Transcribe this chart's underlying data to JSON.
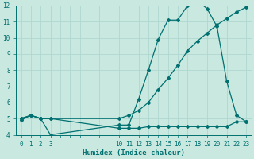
{
  "xlabel": "Humidex (Indice chaleur)",
  "bg_color": "#c8e8e0",
  "grid_color": "#b0d8d0",
  "line_color": "#007070",
  "line1_x": [
    0,
    1,
    2,
    3,
    10,
    11,
    12,
    13,
    14,
    15,
    16,
    17,
    18,
    19,
    20,
    21,
    22,
    23
  ],
  "line1_y": [
    5.0,
    5.2,
    5.0,
    4.0,
    4.6,
    4.6,
    6.2,
    8.0,
    9.9,
    11.1,
    11.1,
    12.0,
    12.3,
    11.8,
    10.7,
    7.3,
    5.2,
    4.8
  ],
  "line2_x": [
    0,
    1,
    2,
    3,
    10,
    11,
    12,
    13,
    14,
    15,
    16,
    17,
    18,
    19,
    20,
    21,
    22,
    23
  ],
  "line2_y": [
    4.9,
    5.2,
    5.0,
    5.0,
    5.0,
    5.2,
    5.5,
    6.0,
    6.8,
    7.5,
    8.3,
    9.2,
    9.8,
    10.3,
    10.8,
    11.2,
    11.6,
    11.9
  ],
  "line3_x": [
    0,
    1,
    2,
    3,
    10,
    11,
    12,
    13,
    14,
    15,
    16,
    17,
    18,
    19,
    20,
    21,
    22,
    23
  ],
  "line3_y": [
    5.0,
    5.2,
    5.0,
    5.0,
    4.4,
    4.4,
    4.4,
    4.5,
    4.5,
    4.5,
    4.5,
    4.5,
    4.5,
    4.5,
    4.5,
    4.5,
    4.8,
    4.8
  ],
  "xlim": [
    -0.5,
    23.5
  ],
  "ylim": [
    4,
    12
  ],
  "yticks": [
    4,
    5,
    6,
    7,
    8,
    9,
    10,
    11,
    12
  ],
  "xtick_labels": [
    "0",
    "1",
    "2",
    "3",
    "10",
    "11",
    "12",
    "13",
    "14",
    "15",
    "16",
    "17",
    "18",
    "19",
    "20",
    "21",
    "22",
    "23"
  ],
  "marker_size": 2.0,
  "line_width": 0.9,
  "xlabel_fontsize": 6.5,
  "tick_fontsize": 5.5
}
